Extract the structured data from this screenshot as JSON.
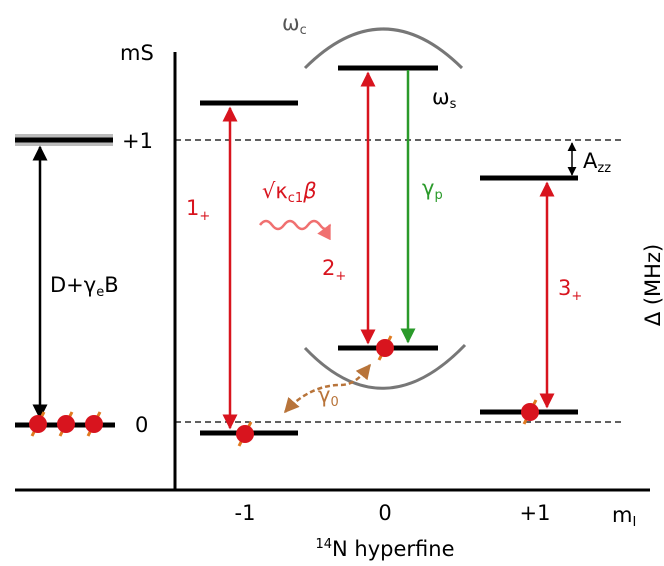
{
  "axis_labels": {
    "ms": {
      "text": "m",
      "sub": "S"
    },
    "mi": {
      "text": "m",
      "sub": "I"
    },
    "delta": "Δ (MHz)",
    "hyperfine": {
      "sup": "14",
      "text": "N hyperfine"
    }
  },
  "ms_ticks": [
    "+1",
    "0"
  ],
  "mi_ticks": [
    "-1",
    "0",
    "+1"
  ],
  "transitions": [
    {
      "text": "1",
      "sub": "+"
    },
    {
      "text": "2",
      "sub": "+"
    },
    {
      "text": "3",
      "sub": "+"
    }
  ],
  "zero_field": {
    "text": "D+γ",
    "sub": "e",
    "tail": "B"
  },
  "cavity": {
    "text": "ω",
    "sub": "c"
  },
  "spin": {
    "text": "ω",
    "sub": "s"
  },
  "hyperfine_splitting": {
    "text": "A",
    "sub": "zz"
  },
  "pump": {
    "text": "γ",
    "sub": "p"
  },
  "relax": {
    "text": "γ",
    "sub": "0"
  },
  "drive": {
    "text": "√κ",
    "sub": "c1",
    "tail": "β"
  }
}
